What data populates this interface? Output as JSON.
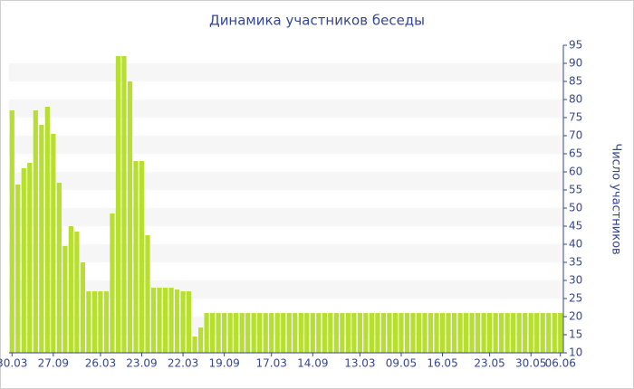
{
  "chart_data": {
    "type": "bar",
    "title": "Динамика участников беседы",
    "y_axis_label": "Число участников",
    "color": "#b6df2f",
    "grid": true,
    "categories": [
      "30.03",
      null,
      null,
      null,
      null,
      null,
      null,
      "27.09",
      null,
      null,
      null,
      null,
      null,
      null,
      null,
      "26.03",
      null,
      null,
      null,
      null,
      null,
      null,
      "23.09",
      null,
      null,
      null,
      null,
      null,
      null,
      "22.03",
      null,
      null,
      null,
      null,
      null,
      null,
      "19.09",
      null,
      null,
      null,
      null,
      null,
      null,
      null,
      "17.03",
      null,
      null,
      null,
      null,
      null,
      null,
      "14.09",
      null,
      null,
      null,
      null,
      null,
      null,
      null,
      "13.03",
      null,
      null,
      null,
      null,
      null,
      null,
      "09.05",
      null,
      null,
      null,
      null,
      null,
      null,
      "16.05",
      null,
      null,
      null,
      null,
      null,
      null,
      null,
      "23.05",
      null,
      null,
      null,
      null,
      null,
      null,
      "30.05",
      null,
      null,
      null,
      null,
      "06.06"
    ],
    "values": [
      77,
      56.5,
      61,
      62.5,
      77,
      73,
      78,
      70.5,
      57,
      39.5,
      45,
      43.5,
      35,
      27,
      27,
      27,
      27,
      48.5,
      92,
      92,
      85,
      63,
      63,
      42.5,
      28,
      28,
      28,
      28,
      27.5,
      27,
      27,
      14.5,
      17,
      21,
      21,
      21,
      21,
      21,
      21,
      21,
      21,
      21,
      21,
      21,
      21,
      21,
      21,
      21,
      21,
      21,
      21,
      21,
      21,
      21,
      21,
      21,
      21,
      21,
      21,
      21,
      21,
      21,
      21,
      21,
      21,
      21,
      21,
      21,
      21,
      21,
      21,
      21,
      21,
      21,
      21,
      21,
      21,
      21,
      21,
      21,
      21,
      21,
      21,
      21,
      21,
      21,
      21,
      21,
      21,
      21,
      21,
      21,
      21,
      21
    ],
    "ylim": [
      10,
      95
    ],
    "yticks": [
      10,
      15,
      20,
      25,
      30,
      35,
      40,
      45,
      50,
      55,
      60,
      65,
      70,
      75,
      80,
      85,
      90,
      95
    ]
  }
}
